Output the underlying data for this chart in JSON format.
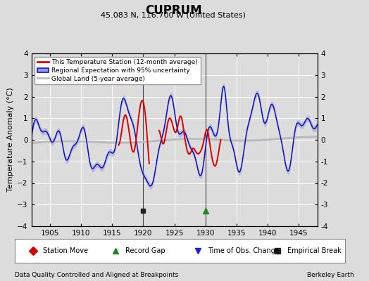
{
  "title": "CUPRUM",
  "subtitle": "45.083 N, 116.700 W (United States)",
  "xlabel_bottom": "Data Quality Controlled and Aligned at Breakpoints",
  "xlabel_right": "Berkeley Earth",
  "ylabel": "Temperature Anomaly (°C)",
  "xlim": [
    1902,
    1948
  ],
  "ylim": [
    -4,
    4
  ],
  "yticks": [
    -4,
    -3,
    -2,
    -1,
    0,
    1,
    2,
    3,
    4
  ],
  "xticks": [
    1905,
    1910,
    1915,
    1920,
    1925,
    1930,
    1935,
    1940,
    1945
  ],
  "bg_color": "#dcdcdc",
  "plot_bg_color": "#dcdcdc",
  "grid_color": "#ffffff",
  "red_line_color": "#dd0000",
  "blue_line_color": "#1111bb",
  "blue_fill_color": "#9999dd",
  "gray_line_color": "#bbbbbb",
  "empirical_break_x": 1920,
  "record_gap_x": 1930,
  "legend_entries": [
    "This Temperature Station (12-month average)",
    "Regional Expectation with 95% uncertainty",
    "Global Land (5-year average)"
  ],
  "bottom_legend": [
    {
      "label": "Station Move",
      "color": "#cc0000",
      "marker": "D"
    },
    {
      "label": "Record Gap",
      "color": "#228822",
      "marker": "^"
    },
    {
      "label": "Time of Obs. Change",
      "color": "#2222cc",
      "marker": "v"
    },
    {
      "label": "Empirical Break",
      "color": "#222222",
      "marker": "s"
    }
  ]
}
